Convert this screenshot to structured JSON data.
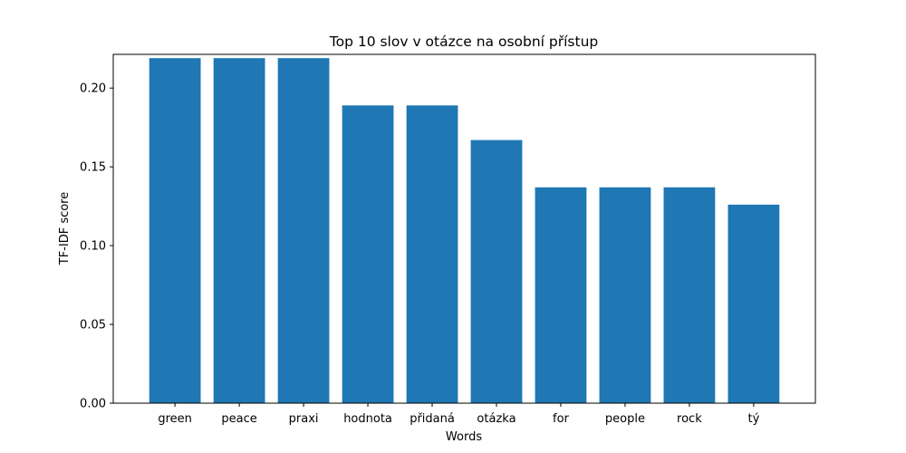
{
  "chart_data": {
    "type": "bar",
    "title": "Top 10 slov v otázce na osobní přístup",
    "xlabel": "Words",
    "ylabel": "TF-IDF score",
    "categories": [
      "green",
      "peace",
      "praxi",
      "hodnota",
      "přidaná",
      "otázka",
      "for",
      "people",
      "rock",
      "tý"
    ],
    "values": [
      0.219,
      0.219,
      0.219,
      0.189,
      0.189,
      0.167,
      0.137,
      0.137,
      0.137,
      0.126
    ],
    "ylim": [
      0,
      0.2214
    ],
    "yticks": [
      "0.00",
      "0.05",
      "0.10",
      "0.15",
      "0.20"
    ],
    "bar_color": "#1f77b4",
    "grid": false,
    "legend": false
  }
}
